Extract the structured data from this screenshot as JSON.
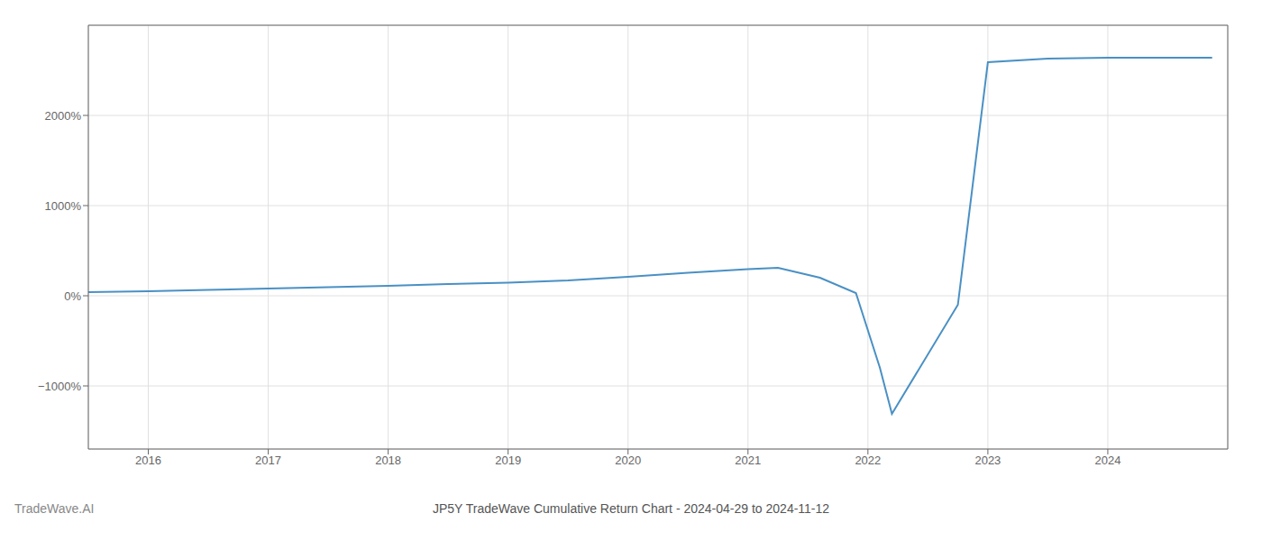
{
  "chart_data": {
    "type": "line",
    "title": "JP5Y TradeWave Cumulative Return Chart - 2024-04-29 to 2024-11-12",
    "annotations": [
      "TradeWave.AI"
    ],
    "x": [
      2015.5,
      2016.0,
      2016.5,
      2017.0,
      2017.5,
      2018.0,
      2018.5,
      2019.0,
      2019.5,
      2020.0,
      2020.5,
      2021.0,
      2021.25,
      2021.6,
      2021.9,
      2022.1,
      2022.2,
      2022.75,
      2023.0,
      2023.5,
      2024.0,
      2024.87
    ],
    "values": [
      40,
      50,
      65,
      80,
      95,
      110,
      130,
      145,
      170,
      210,
      255,
      295,
      310,
      200,
      30,
      -800,
      -1310,
      -100,
      2590,
      2630,
      2640,
      2640
    ],
    "color": "#4a90c4",
    "xlim": [
      2015.5,
      2025.0
    ],
    "ylim": [
      -1700,
      3000
    ],
    "xticks": [
      2016,
      2017,
      2018,
      2019,
      2020,
      2021,
      2022,
      2023,
      2024
    ],
    "yticks": [
      {
        "value": -1000,
        "label": "−1000%"
      },
      {
        "value": 0,
        "label": "0%"
      },
      {
        "value": 1000,
        "label": "1000%"
      },
      {
        "value": 2000,
        "label": "2000%"
      }
    ],
    "grid": true
  }
}
